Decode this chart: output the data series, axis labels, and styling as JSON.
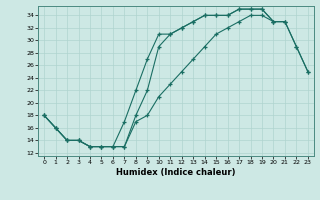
{
  "xlabel": "Humidex (Indice chaleur)",
  "bg_color": "#cde8e4",
  "grid_color": "#b0d4cf",
  "line_color": "#1a6e63",
  "xlim": [
    -0.5,
    23.5
  ],
  "ylim": [
    11.5,
    35.5
  ],
  "xticks": [
    0,
    1,
    2,
    3,
    4,
    5,
    6,
    7,
    8,
    9,
    10,
    11,
    12,
    13,
    14,
    15,
    16,
    17,
    18,
    19,
    20,
    21,
    22,
    23
  ],
  "yticks": [
    12,
    14,
    16,
    18,
    20,
    22,
    24,
    26,
    28,
    30,
    32,
    34
  ],
  "line1_x": [
    0,
    1,
    2,
    3,
    4,
    5,
    6,
    7,
    8,
    9,
    10,
    11,
    12,
    13,
    14,
    15,
    16,
    17,
    18,
    19,
    20,
    21
  ],
  "line1_y": [
    18,
    16,
    14,
    14,
    13,
    13,
    13,
    17,
    22,
    27,
    31,
    31,
    32,
    33,
    34,
    34,
    34,
    35,
    35,
    35,
    33,
    33
  ],
  "line2_x": [
    0,
    1,
    2,
    3,
    4,
    5,
    6,
    7,
    8,
    9,
    10,
    11,
    12,
    13,
    14,
    15,
    16,
    17,
    18,
    19,
    20,
    21,
    22,
    23
  ],
  "line2_y": [
    18,
    16,
    14,
    14,
    13,
    13,
    13,
    13,
    18,
    22,
    29,
    31,
    32,
    33,
    34,
    34,
    34,
    35,
    35,
    35,
    33,
    33,
    29,
    25
  ],
  "line3_x": [
    0,
    1,
    2,
    3,
    4,
    5,
    6,
    7,
    8,
    9,
    10,
    11,
    12,
    13,
    14,
    15,
    16,
    17,
    18,
    19,
    20,
    21,
    22,
    23
  ],
  "line3_y": [
    18,
    16,
    14,
    14,
    13,
    13,
    13,
    13,
    17,
    18,
    21,
    23,
    25,
    27,
    29,
    31,
    32,
    33,
    34,
    34,
    33,
    33,
    29,
    25
  ]
}
